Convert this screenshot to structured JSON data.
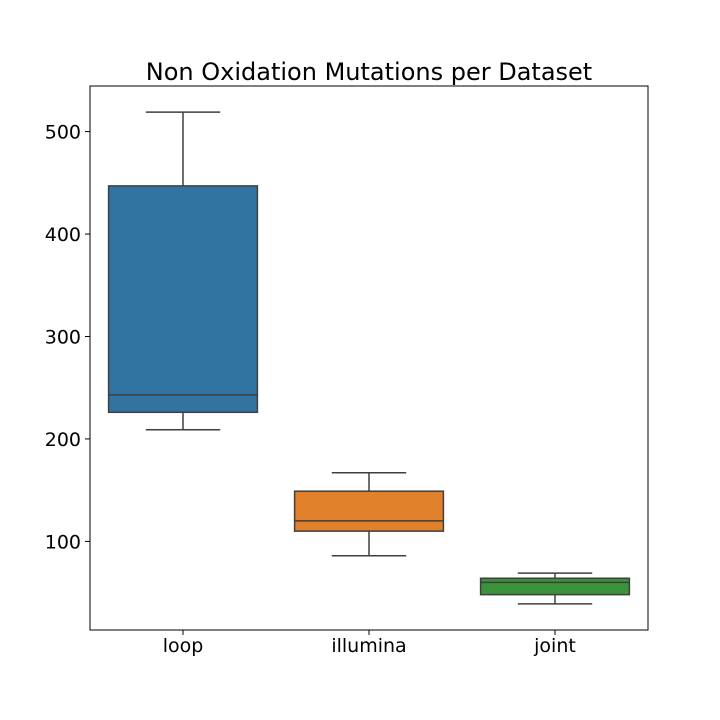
{
  "chart_data": {
    "type": "box",
    "title": "Non Oxidation Mutations per Dataset",
    "xlabel": "",
    "ylabel": "",
    "categories": [
      "loop",
      "illumina",
      "joint"
    ],
    "boxes": [
      {
        "category": "loop",
        "whisker_low": 209,
        "q1": 226,
        "median": 243,
        "q3": 447,
        "whisker_high": 519,
        "color": "#3274a1"
      },
      {
        "category": "illumina",
        "whisker_low": 86,
        "q1": 110,
        "median": 120,
        "q3": 149,
        "whisker_high": 167,
        "color": "#e1812c"
      },
      {
        "category": "joint",
        "whisker_low": 39,
        "q1": 48,
        "median": 60,
        "q3": 64,
        "whisker_high": 69,
        "color": "#3a923a"
      }
    ],
    "ylim": [
      13.5,
      544.5
    ],
    "yticks": [
      100,
      200,
      300,
      400,
      500
    ],
    "ytick_labels": [
      "100",
      "200",
      "300",
      "400",
      "500"
    ],
    "grid": false,
    "legend": "none",
    "line_color": "#3f3f3f",
    "axis_color": "#000000"
  }
}
